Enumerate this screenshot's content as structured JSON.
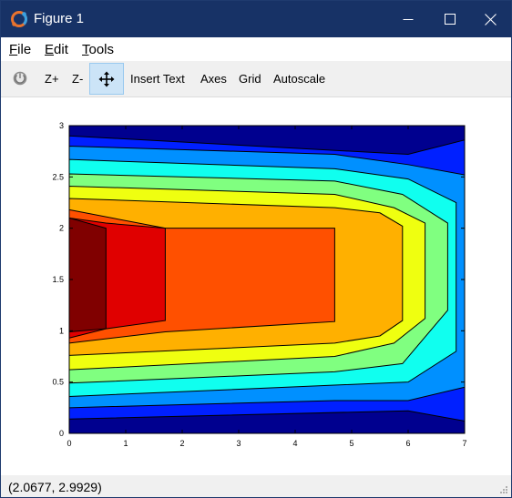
{
  "window": {
    "title": "Figure 1",
    "colors": {
      "titlebar": "#173266",
      "toolbar": "#f0f0f0",
      "pan_active": "#cce4f7"
    }
  },
  "menubar": {
    "items": [
      {
        "label": "File",
        "mnemonic": "F",
        "rest": "ile"
      },
      {
        "label": "Edit",
        "mnemonic": "E",
        "rest": "dit"
      },
      {
        "label": "Tools",
        "mnemonic": "T",
        "rest": "ools"
      }
    ]
  },
  "toolbar": {
    "rotate_icon": "rotate-icon",
    "zoom_in": "Z+",
    "zoom_out": "Z-",
    "pan_icon": "pan-move-icon",
    "insert_text": "Insert Text",
    "axes": "Axes",
    "grid": "Grid",
    "autoscale": "Autoscale"
  },
  "status": {
    "coords": "(2.0677, 2.9929)"
  },
  "chart_data": {
    "type": "filled-contour",
    "title": "",
    "xlabel": "",
    "ylabel": "",
    "xlim": [
      0,
      7
    ],
    "ylim": [
      0,
      3
    ],
    "xticks": [
      0,
      1,
      2,
      3,
      4,
      5,
      6,
      7
    ],
    "yticks": [
      0,
      0.5,
      1,
      1.5,
      2,
      2.5,
      3
    ],
    "xtick_labels": [
      "0",
      "1",
      "2",
      "3",
      "4",
      "5",
      "6",
      "7"
    ],
    "ytick_labels": [
      "0",
      "0.5",
      "1",
      "1.5",
      "2",
      "2.5",
      "3"
    ],
    "colormap": "jet",
    "level_colors": [
      "#00008f",
      "#0020ff",
      "#0090ff",
      "#10ffef",
      "#80ff80",
      "#efff10",
      "#ffb000",
      "#ff5000",
      "#e00000",
      "#800000"
    ],
    "grid": false,
    "levels": [
      {
        "color": "#0020ff",
        "x": [
          0.0,
          0.0,
          6.0,
          7.0,
          7.0,
          6.0
        ],
        "y_bottom": [
          0.14,
          0.14,
          0.22,
          0.12,
          2.86,
          2.72
        ],
        "y_top": [
          2.9,
          2.9,
          2.72,
          2.86,
          0.12,
          0.22
        ]
      },
      {
        "color": "#0090ff",
        "outer": [
          [
            0,
            0.25
          ],
          [
            4.7,
            0.32
          ],
          [
            6.0,
            0.32
          ],
          [
            7.0,
            0.45
          ],
          [
            7.0,
            2.52
          ],
          [
            6.0,
            2.62
          ],
          [
            4.7,
            2.72
          ],
          [
            0,
            2.8
          ]
        ]
      },
      {
        "color": "#10ffef",
        "outer": [
          [
            0,
            0.36
          ],
          [
            4.7,
            0.47
          ],
          [
            6.0,
            0.5
          ],
          [
            6.85,
            0.8
          ],
          [
            6.85,
            2.25
          ],
          [
            6.0,
            2.48
          ],
          [
            4.7,
            2.58
          ],
          [
            0,
            2.67
          ]
        ]
      },
      {
        "color": "#80ff80",
        "outer": [
          [
            0,
            0.49
          ],
          [
            4.7,
            0.6
          ],
          [
            5.9,
            0.68
          ],
          [
            6.7,
            1.2
          ],
          [
            6.7,
            2.05
          ],
          [
            5.9,
            2.33
          ],
          [
            4.7,
            2.46
          ],
          [
            0,
            2.53
          ]
        ]
      },
      {
        "color": "#efff10",
        "outer": [
          [
            0,
            0.62
          ],
          [
            4.7,
            0.75
          ],
          [
            5.75,
            0.88
          ],
          [
            6.3,
            1.12
          ],
          [
            6.3,
            2.05
          ],
          [
            5.75,
            2.2
          ],
          [
            4.7,
            2.33
          ],
          [
            0,
            2.41
          ]
        ]
      },
      {
        "color": "#ffb000",
        "outer": [
          [
            0,
            0.76
          ],
          [
            4.7,
            0.88
          ],
          [
            5.5,
            0.95
          ],
          [
            5.9,
            1.1
          ],
          [
            5.9,
            2.02
          ],
          [
            5.5,
            2.15
          ],
          [
            4.7,
            2.2
          ],
          [
            0,
            2.29
          ]
        ]
      },
      {
        "color": "#ff5000",
        "outer": [
          [
            0,
            0.88
          ],
          [
            1.7,
            0.99
          ],
          [
            4.7,
            1.09
          ],
          [
            4.7,
            2.0
          ],
          [
            1.7,
            2.0
          ],
          [
            0,
            2.18
          ]
        ]
      },
      {
        "color": "#e00000",
        "outer": [
          [
            0,
            0.93
          ],
          [
            0.65,
            1.02
          ],
          [
            1.7,
            1.1
          ],
          [
            1.7,
            2.0
          ],
          [
            0.65,
            2.05
          ],
          [
            0,
            2.1
          ]
        ]
      },
      {
        "color": "#800000",
        "outer": [
          [
            0,
            0.99
          ],
          [
            0.65,
            1.02
          ],
          [
            0.65,
            2.0
          ],
          [
            0,
            2.1
          ]
        ]
      }
    ]
  }
}
